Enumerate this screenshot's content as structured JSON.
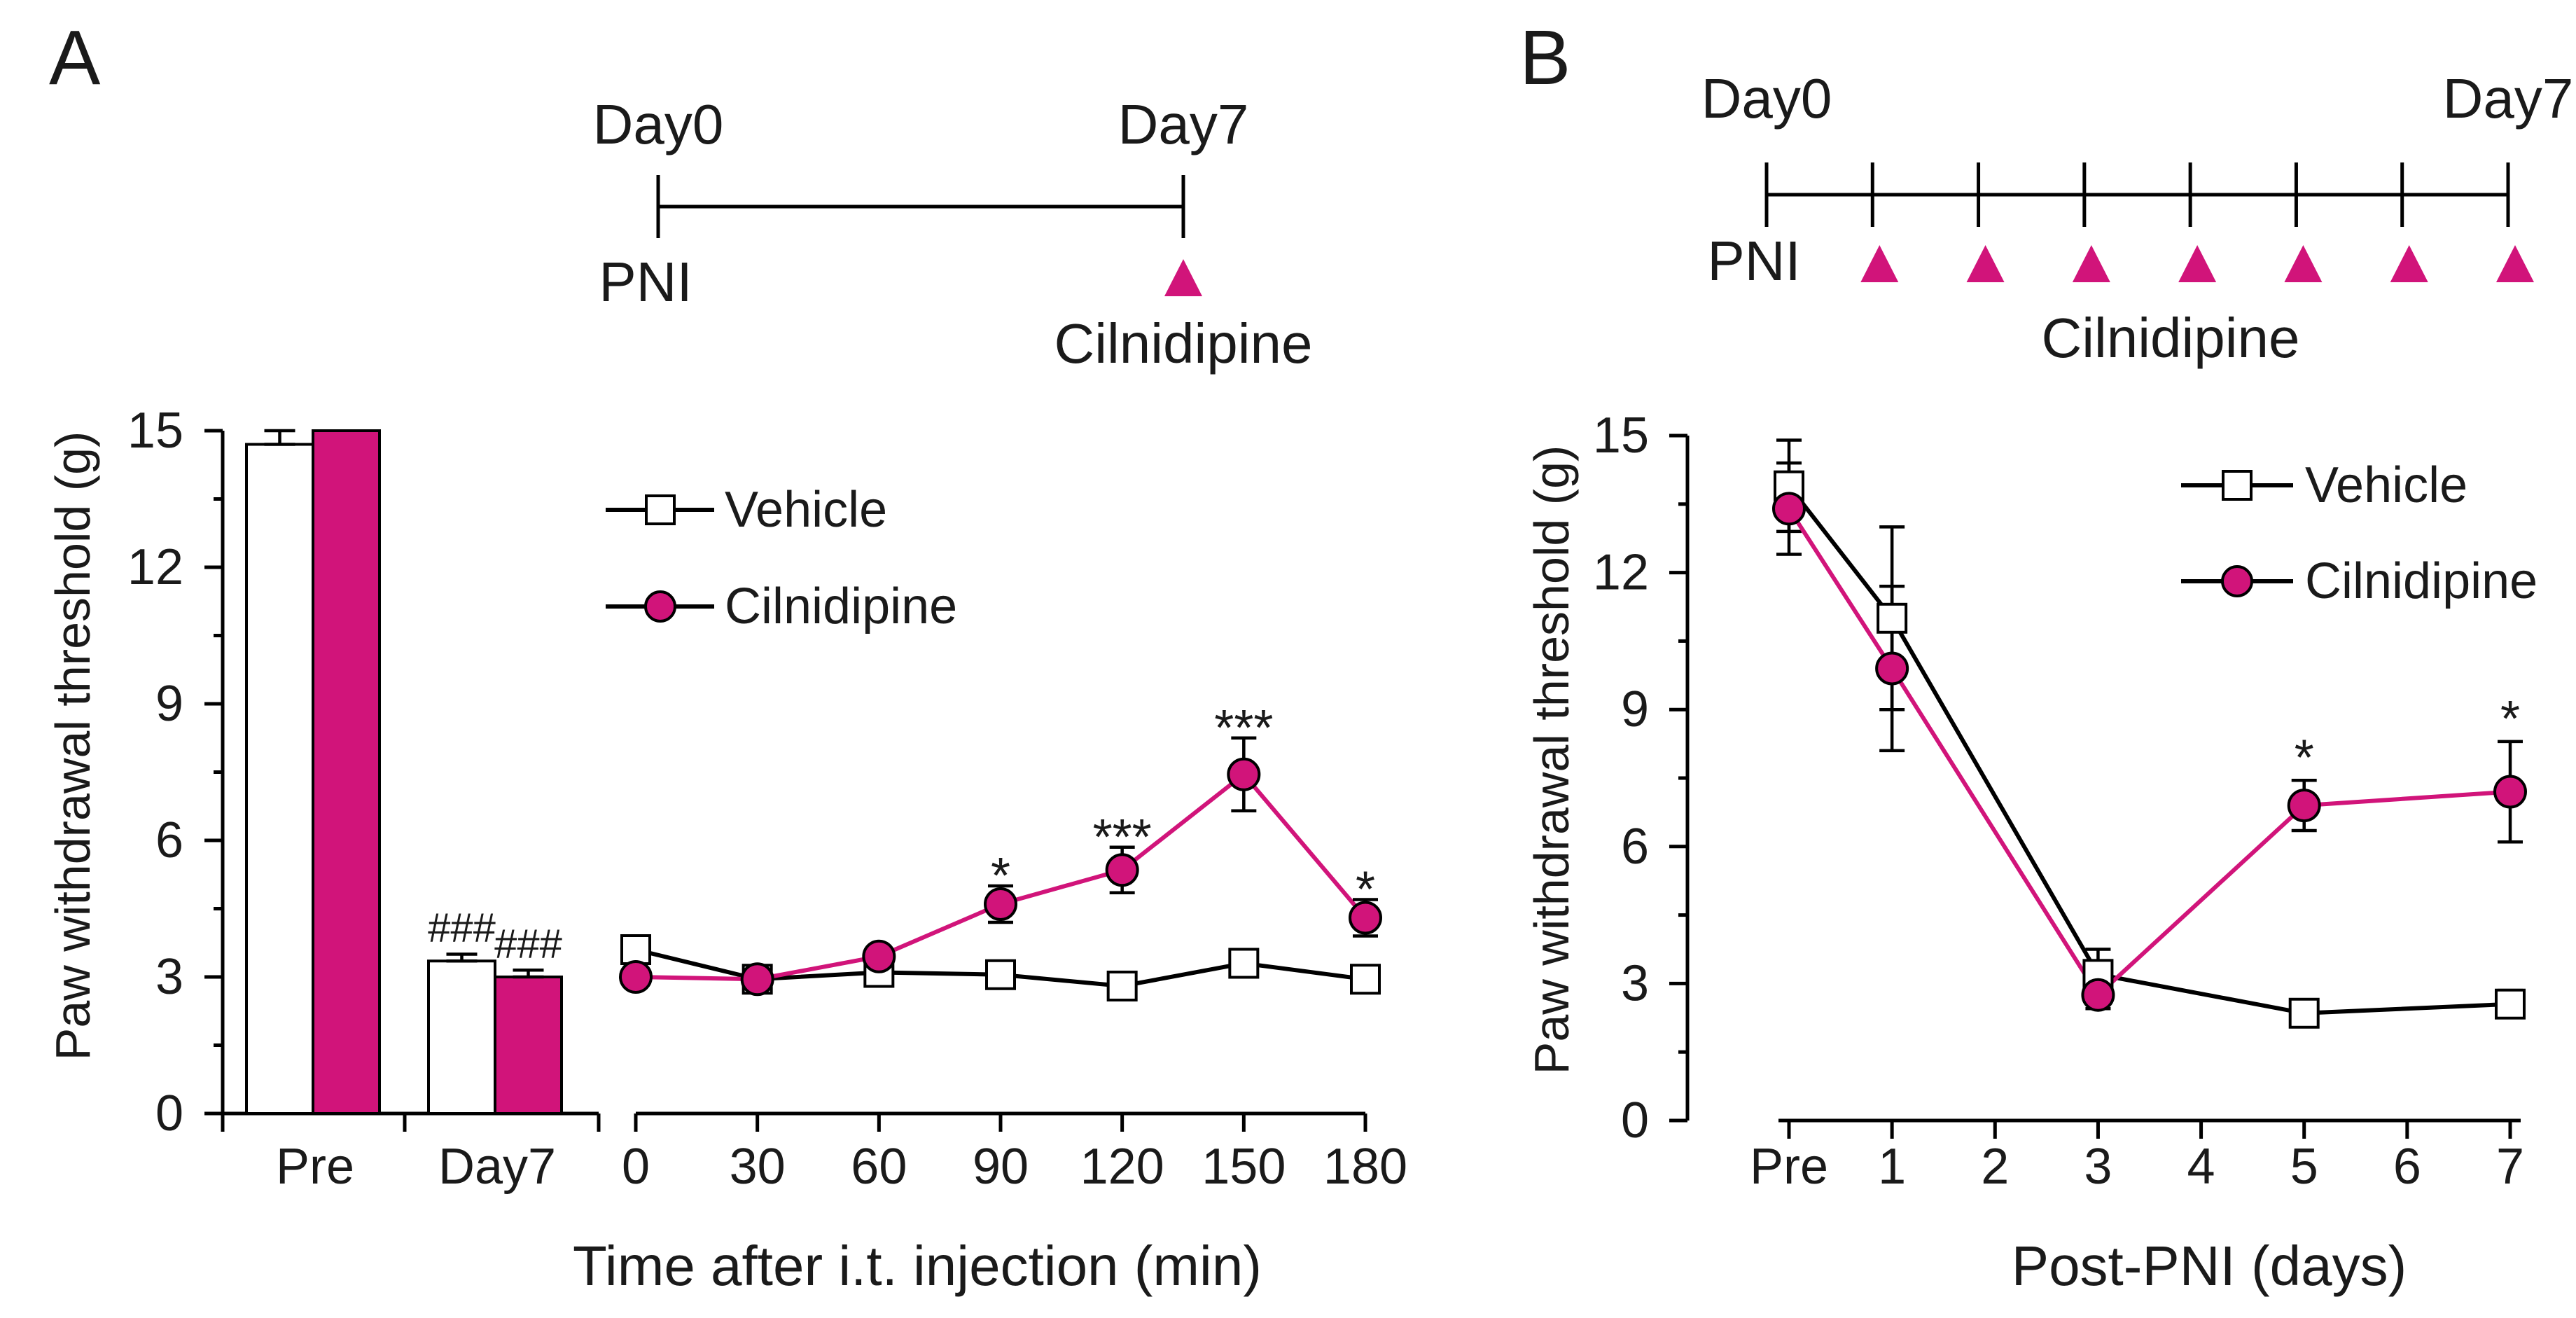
{
  "colors": {
    "cilnidipine": "#d1147a",
    "vehicle": "#000000",
    "vehicle_fill": "#ffffff",
    "axis": "#000000"
  },
  "chart_data": [
    {
      "panel": "A",
      "panel_label": "A",
      "type": "bar+line",
      "ylabel": "Paw withdrawal threshold (g)",
      "ylim": [
        0,
        15
      ],
      "yticks": [
        "0",
        "3",
        "6",
        "9",
        "12",
        "15"
      ],
      "legend": {
        "vehicle": "Vehicle",
        "cilnidipine": "Cilnidipine",
        "placement": "top-center"
      },
      "schedule": {
        "start": "Day0",
        "end": "Day7",
        "start_event": "PNI",
        "treatment": "Cilnidipine"
      },
      "bars": {
        "categories": [
          "Pre",
          "Day7"
        ],
        "series": [
          {
            "name": "Vehicle",
            "values": [
              14.7,
              3.35
            ],
            "errors": [
              0.3,
              0.15
            ]
          },
          {
            "name": "Cilnidipine",
            "values": [
              15.0,
              3.0
            ],
            "errors": [
              0.0,
              0.15
            ]
          }
        ],
        "annotations": [
          "",
          "###",
          "###"
        ]
      },
      "line": {
        "xlabel": "Time after i.t. injection (min)",
        "x": [
          "0",
          "30",
          "60",
          "90",
          "120",
          "150",
          "180"
        ],
        "series": [
          {
            "name": "Vehicle",
            "values": [
              3.6,
              2.95,
              3.1,
              3.05,
              2.8,
              3.3,
              2.95
            ],
            "errors": [
              0.3,
              0.2,
              0.2,
              0.15,
              0.15,
              0.2,
              0.2
            ]
          },
          {
            "name": "Cilnidipine",
            "values": [
              3.0,
              2.95,
              3.45,
              4.6,
              5.35,
              7.45,
              4.3
            ],
            "errors": [
              0.15,
              0.2,
              0.2,
              0.4,
              0.5,
              0.8,
              0.4
            ]
          }
        ],
        "significance": [
          "",
          "",
          "",
          "*",
          "***",
          "***",
          "*"
        ]
      }
    },
    {
      "panel": "B",
      "panel_label": "B",
      "type": "line",
      "ylabel": "Paw withdrawal threshold (g)",
      "xlabel": "Post-PNI (days)",
      "ylim": [
        0,
        15
      ],
      "yticks": [
        "0",
        "3",
        "6",
        "9",
        "12",
        "15"
      ],
      "x": [
        "Pre",
        "1",
        "2",
        "3",
        "4",
        "5",
        "6",
        "7"
      ],
      "legend": {
        "vehicle": "Vehicle",
        "cilnidipine": "Cilnidipine",
        "placement": "top-right"
      },
      "schedule": {
        "start": "Day0",
        "end": "Day7",
        "start_event": "PNI",
        "treatment": "Cilnidipine"
      },
      "series": [
        {
          "name": "Vehicle",
          "points": [
            [
              0,
              13.9
            ],
            [
              1,
              11.0
            ],
            [
              3,
              3.2
            ],
            [
              5,
              2.35
            ],
            [
              7,
              2.55
            ]
          ],
          "errors": [
            1.0,
            2.0,
            0.55,
            0.2,
            0.3
          ]
        },
        {
          "name": "Cilnidipine",
          "points": [
            [
              0,
              13.4
            ],
            [
              1,
              9.9
            ],
            [
              3,
              2.75
            ],
            [
              5,
              6.9
            ],
            [
              7,
              7.2
            ]
          ],
          "errors": [
            1.0,
            1.8,
            0.3,
            0.55,
            1.1
          ]
        }
      ],
      "significance": [
        "",
        "",
        "",
        "*",
        "*"
      ]
    }
  ]
}
